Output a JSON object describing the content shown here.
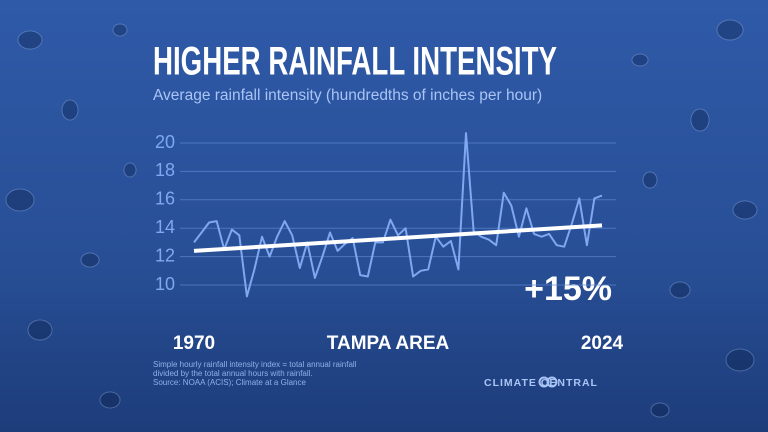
{
  "chart_data": {
    "type": "line",
    "title": "HIGHER RAINFALL INTENSITY",
    "subtitle": "Average rainfall intensity (hundredths of inches per hour)",
    "x": [
      1970,
      1971,
      1972,
      1973,
      1974,
      1975,
      1976,
      1977,
      1978,
      1979,
      1980,
      1981,
      1982,
      1983,
      1984,
      1985,
      1986,
      1987,
      1988,
      1989,
      1990,
      1991,
      1992,
      1993,
      1994,
      1995,
      1996,
      1997,
      1998,
      1999,
      2000,
      2001,
      2002,
      2003,
      2004,
      2005,
      2006,
      2007,
      2008,
      2009,
      2010,
      2011,
      2012,
      2013,
      2014,
      2015,
      2016,
      2017,
      2018,
      2019,
      2020,
      2021,
      2022,
      2023,
      2024
    ],
    "values": [
      13.0,
      13.7,
      14.4,
      14.5,
      12.5,
      13.9,
      13.5,
      9.2,
      11.1,
      13.4,
      12.0,
      13.4,
      14.5,
      13.5,
      11.2,
      13.0,
      10.5,
      12.0,
      13.7,
      12.4,
      12.9,
      13.3,
      10.7,
      10.6,
      13.0,
      13.0,
      14.6,
      13.5,
      14.0,
      10.6,
      11.0,
      11.1,
      13.4,
      12.7,
      13.1,
      11.1,
      20.7,
      13.8,
      13.4,
      13.2,
      12.8,
      16.5,
      15.6,
      13.4,
      15.4,
      13.6,
      13.4,
      13.6,
      12.8,
      12.7,
      14.3,
      16.1,
      12.8,
      16.1,
      16.3
    ],
    "color": "#7fa8f0",
    "trend": {
      "x": [
        1970,
        2024
      ],
      "values": [
        12.4,
        14.2
      ],
      "color": "#ffffff"
    },
    "annotation": "+15%",
    "location": "TAMPA AREA",
    "xlim": [
      1970,
      2024
    ],
    "xticks": [
      1970,
      2024
    ],
    "ylim": [
      8.6,
      21
    ],
    "yticks": [
      10,
      12,
      14,
      16,
      18,
      20
    ],
    "grid": true,
    "notes": [
      "Simple hourly rainfall intensity index = total annual rainfall",
      "divided by the total annual hours with rainfall.",
      "Source: NOAA (ACIS); Climate at a Glance"
    ],
    "brand": "CLIMATE CENTRAL"
  }
}
